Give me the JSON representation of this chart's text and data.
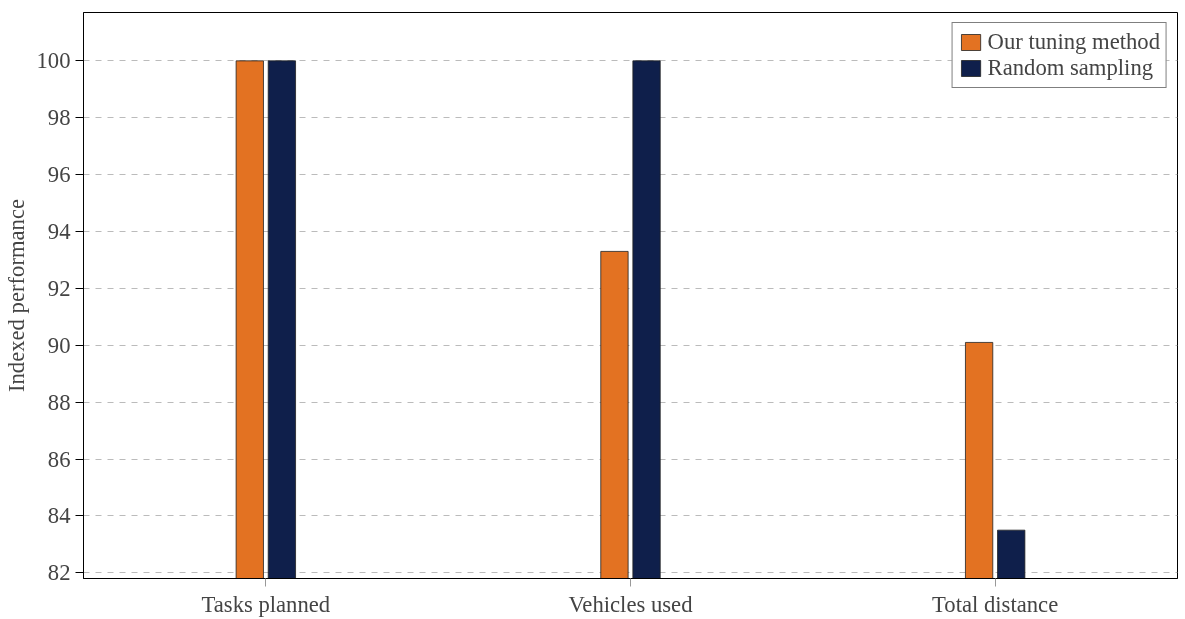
{
  "chart_data": {
    "type": "bar",
    "ylabel": "Indexed performance",
    "categories": [
      "Tasks planned",
      "Vehicles used",
      "Total distance"
    ],
    "series": [
      {
        "name": "Our tuning method",
        "color": "#e37222",
        "values": [
          100,
          93.3,
          90.1
        ]
      },
      {
        "name": "Random sampling",
        "color": "#0f1f4b",
        "values": [
          100,
          100,
          83.5
        ]
      }
    ],
    "ylim": [
      81.8,
      101.7
    ],
    "yticks": [
      82,
      84,
      86,
      88,
      90,
      92,
      94,
      96,
      98,
      100
    ],
    "grid": "y",
    "legend": "top right"
  }
}
